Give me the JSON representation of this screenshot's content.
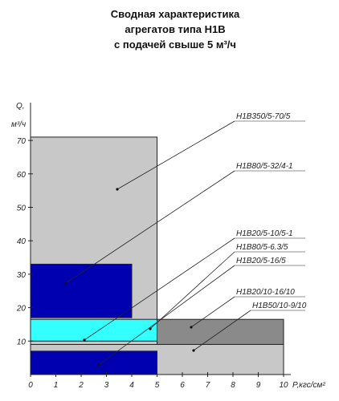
{
  "chart_data": {
    "type": "range-rect",
    "title": [
      "Сводная характеристика",
      "агрегатов типа Н1В",
      "с подачей свыше 5 м³/ч"
    ],
    "y_label": [
      "Q,",
      "м³/ч"
    ],
    "x_label": "P,кгс/см²",
    "xlim": [
      0,
      10
    ],
    "ylim": [
      0,
      80
    ],
    "xticks": [
      0,
      1,
      2,
      3,
      4,
      5,
      6,
      7,
      8,
      9,
      10
    ],
    "yticks": [
      10,
      20,
      30,
      40,
      50,
      60,
      70
    ],
    "series": [
      {
        "name": "Н1В350/5-70/5",
        "color": "#c8c8c8",
        "xrange": [
          0,
          5
        ],
        "yrange": [
          0,
          71
        ]
      },
      {
        "name": "Н1В20/10-16/10",
        "color": "#8a8a8a",
        "xrange": [
          5,
          10
        ],
        "yrange": [
          9,
          16.5
        ]
      },
      {
        "name": "Н1В50/10-9/10",
        "color": "#c8c8c8",
        "xrange": [
          0,
          10
        ],
        "yrange": [
          0,
          9
        ]
      },
      {
        "name": "Н1В20/5-10/5-1",
        "color": "#c8c8c8",
        "xrange": [
          0,
          5
        ],
        "yrange": [
          9,
          10
        ]
      },
      {
        "name": "Н1В80/5-6.3/5",
        "color": "#33ffff",
        "xrange": [
          0,
          5
        ],
        "yrange": [
          10,
          16.5
        ]
      },
      {
        "name": "Н1В20/5-16/5",
        "color": "#0000b0",
        "xrange": [
          0,
          5
        ],
        "yrange": [
          0,
          7
        ]
      },
      {
        "name": "Н1В80/5-32/4-1",
        "color": "#0000b0",
        "xrange": [
          0,
          4
        ],
        "yrange": [
          17,
          33
        ]
      }
    ]
  }
}
